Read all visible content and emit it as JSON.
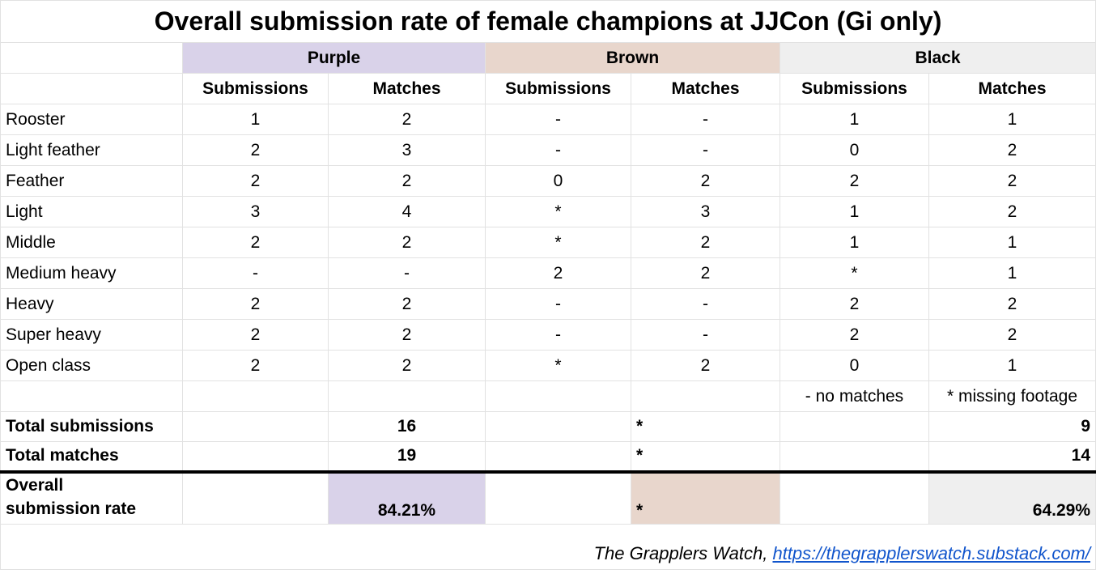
{
  "title": "Overall submission rate of female champions at JJCon (Gi only)",
  "belts": [
    {
      "label": "Purple",
      "color": "#d9d2e9"
    },
    {
      "label": "Brown",
      "color": "#e8d6cc"
    },
    {
      "label": "Black",
      "color": "#efefef"
    }
  ],
  "subheaders": {
    "submissions": "Submissions",
    "matches": "Matches"
  },
  "rows": [
    {
      "label": "Rooster",
      "values": [
        "1",
        "2",
        "-",
        "-",
        "1",
        "1"
      ]
    },
    {
      "label": "Light feather",
      "values": [
        "2",
        "3",
        "-",
        "-",
        "0",
        "2"
      ]
    },
    {
      "label": "Feather",
      "values": [
        "2",
        "2",
        "0",
        "2",
        "2",
        "2"
      ]
    },
    {
      "label": "Light",
      "values": [
        "3",
        "4",
        "*",
        "3",
        "1",
        "2"
      ]
    },
    {
      "label": "Middle",
      "values": [
        "2",
        "2",
        "*",
        "2",
        "1",
        "1"
      ]
    },
    {
      "label": "Medium heavy",
      "values": [
        "-",
        "-",
        "2",
        "2",
        "*",
        "1"
      ]
    },
    {
      "label": "Heavy",
      "values": [
        "2",
        "2",
        "-",
        "-",
        "2",
        "2"
      ]
    },
    {
      "label": "Super heavy",
      "values": [
        "2",
        "2",
        "-",
        "-",
        "2",
        "2"
      ]
    },
    {
      "label": "Open class",
      "values": [
        "2",
        "2",
        "*",
        "2",
        "0",
        "1"
      ]
    }
  ],
  "legend": {
    "no_matches": "- no matches",
    "missing_footage": "* missing footage"
  },
  "totals": {
    "submissions_label": "Total submissions",
    "matches_label": "Total matches",
    "purple_submissions": "16",
    "purple_matches": "19",
    "brown_submissions": "*",
    "brown_matches": "*",
    "black_submissions": "9",
    "black_matches": "14"
  },
  "rate": {
    "label_line1": "Overall",
    "label_line2": "submission rate",
    "purple": "84.21%",
    "brown": "*",
    "black": "64.29%"
  },
  "footer": {
    "source": "The Grapplers Watch, ",
    "url": "https://thegrapplerswatch.substack.com/"
  }
}
